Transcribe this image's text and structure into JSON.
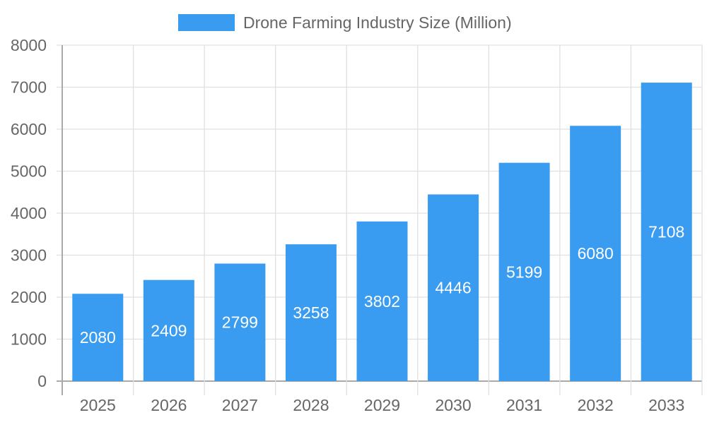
{
  "chart_data": {
    "type": "bar",
    "categories": [
      "2025",
      "2026",
      "2027",
      "2028",
      "2029",
      "2030",
      "2031",
      "2032",
      "2033"
    ],
    "series": [
      {
        "name": "Drone Farming Industry Size (Million)",
        "values": [
          2080,
          2409,
          2799,
          3258,
          3802,
          4446,
          5199,
          6080,
          7108
        ],
        "color": "#399cf0"
      }
    ],
    "ylim": [
      0,
      8000
    ],
    "yticks": [
      0,
      1000,
      2000,
      3000,
      4000,
      5000,
      6000,
      7000,
      8000
    ],
    "grid": true,
    "legend": "top",
    "data_labels": true
  }
}
